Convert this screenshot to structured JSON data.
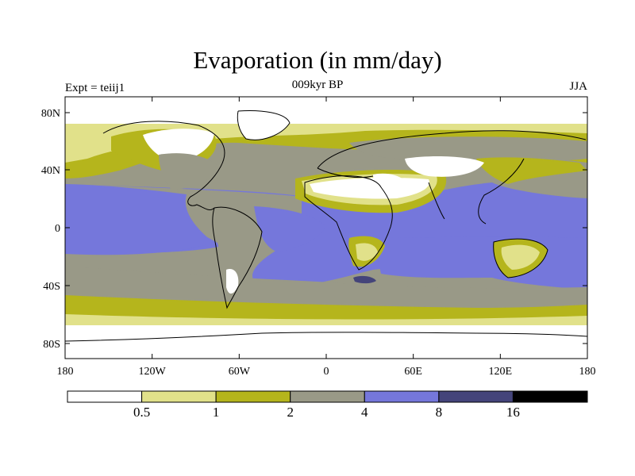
{
  "title": "Evaporation (in mm/day)",
  "subtitle": "009kyr BP",
  "left_label": "Expt = teiij1",
  "right_label": "JJA",
  "map": {
    "projection": "equirectangular",
    "lon_ticks": [
      "180",
      "120W",
      "60W",
      "0",
      "60E",
      "120E",
      "180"
    ],
    "lat_ticks": [
      "80N",
      "40N",
      "0",
      "40S",
      "80S"
    ]
  },
  "colorbar": {
    "labels": [
      "0.5",
      "1",
      "2",
      "4",
      "8",
      "16"
    ],
    "colors": [
      "#ffffff",
      "#e1e18a",
      "#b5b51c",
      "#999987",
      "#7577db",
      "#44447a",
      "#000000"
    ]
  },
  "colors": {
    "land_lt_0_5": "#ffffff",
    "c_0_5_1": "#e1e18a",
    "c_1_2": "#b5b51c",
    "c_2_4": "#999987",
    "c_4_8": "#7577db",
    "c_8_16": "#44447a",
    "c_gt_16": "#000000"
  }
}
